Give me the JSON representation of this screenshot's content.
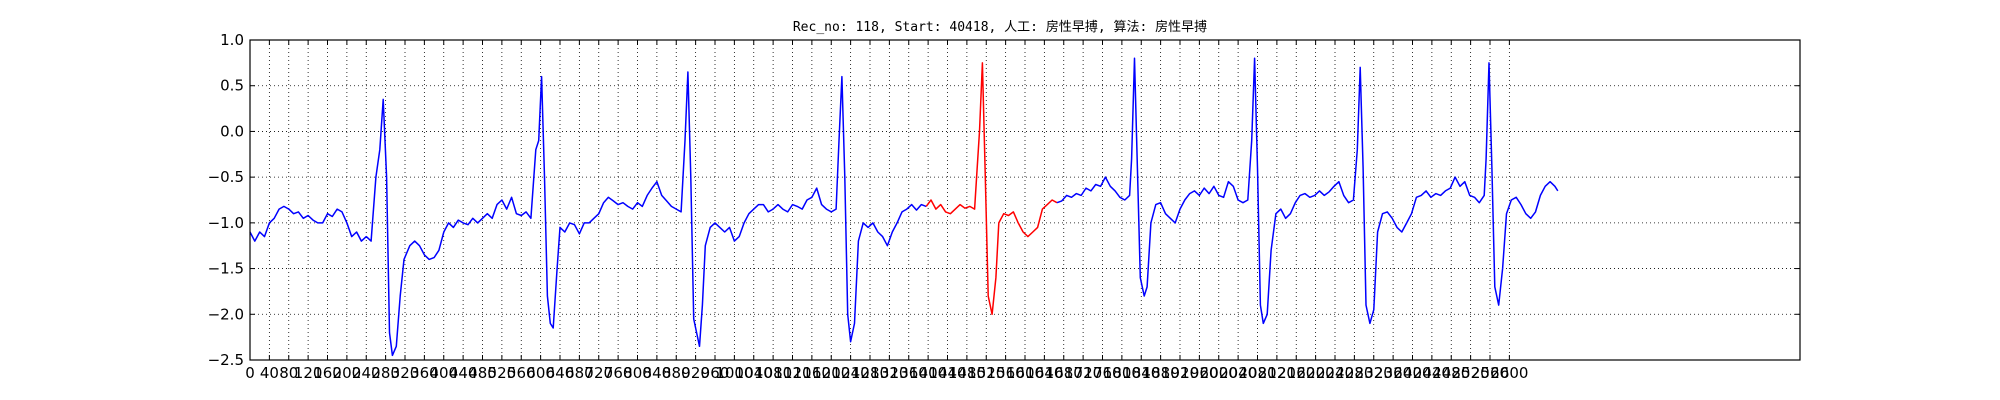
{
  "chart_data": {
    "type": "line",
    "title": "Rec_no: 118, Start: 40418, 人工: 房性早搏, 算法: 房性早搏",
    "xlabel": "",
    "ylabel": "",
    "xlim": [
      0,
      3200
    ],
    "ylim": [
      -2.5,
      1.0
    ],
    "grid": true,
    "grid_style": "dotted",
    "xticks": [
      0,
      40,
      80,
      120,
      160,
      200,
      240,
      280,
      320,
      360,
      400,
      440,
      480,
      520,
      560,
      600,
      640,
      680,
      720,
      760,
      800,
      840,
      880,
      920,
      960,
      1000,
      1040,
      1080,
      1120,
      1160,
      1200,
      1240,
      1280,
      1320,
      1360,
      1400,
      1440,
      1480,
      1520,
      1560,
      1600,
      1640,
      1680,
      1720,
      1760,
      1800,
      1840,
      1880,
      1920,
      1960,
      2000,
      2040,
      2080,
      2120,
      2160,
      2200,
      2240,
      2280,
      2320,
      2360,
      2400,
      2440,
      2480,
      2520,
      2560,
      2600
    ],
    "yticks": [
      1.0,
      0.5,
      0.0,
      -0.5,
      -1.0,
      -1.5,
      -2.0,
      -2.5
    ],
    "ytick_labels": [
      "1.0",
      "0.5",
      "0.0",
      "−0.5",
      "−1.0",
      "−1.5",
      "−2.0",
      "−2.5"
    ],
    "series": [
      {
        "color": "#0000ff",
        "segment": "pre",
        "points": [
          [
            0,
            -1.1
          ],
          [
            10,
            -1.2
          ],
          [
            20,
            -1.1
          ],
          [
            30,
            -1.15
          ],
          [
            40,
            -1.0
          ],
          [
            50,
            -0.95
          ],
          [
            60,
            -0.85
          ],
          [
            70,
            -0.82
          ],
          [
            80,
            -0.85
          ],
          [
            90,
            -0.9
          ],
          [
            100,
            -0.88
          ],
          [
            110,
            -0.95
          ],
          [
            120,
            -0.92
          ],
          [
            130,
            -0.97
          ],
          [
            140,
            -1.0
          ],
          [
            150,
            -1.0
          ],
          [
            160,
            -0.9
          ],
          [
            170,
            -0.93
          ],
          [
            180,
            -0.85
          ],
          [
            190,
            -0.88
          ],
          [
            200,
            -1.0
          ],
          [
            210,
            -1.15
          ],
          [
            220,
            -1.1
          ],
          [
            230,
            -1.2
          ],
          [
            240,
            -1.15
          ],
          [
            250,
            -1.2
          ],
          [
            260,
            -0.5
          ],
          [
            268,
            -0.2
          ],
          [
            275,
            0.35
          ],
          [
            282,
            -0.5
          ],
          [
            288,
            -2.2
          ],
          [
            294,
            -2.45
          ],
          [
            302,
            -2.35
          ],
          [
            310,
            -1.8
          ],
          [
            318,
            -1.4
          ],
          [
            330,
            -1.25
          ],
          [
            340,
            -1.2
          ],
          [
            350,
            -1.25
          ],
          [
            360,
            -1.35
          ],
          [
            370,
            -1.4
          ],
          [
            380,
            -1.38
          ],
          [
            390,
            -1.3
          ],
          [
            400,
            -1.1
          ],
          [
            410,
            -1.0
          ],
          [
            420,
            -1.05
          ],
          [
            430,
            -0.97
          ],
          [
            440,
            -1.0
          ],
          [
            450,
            -1.02
          ],
          [
            460,
            -0.95
          ],
          [
            470,
            -1.0
          ],
          [
            480,
            -0.95
          ],
          [
            490,
            -0.9
          ],
          [
            500,
            -0.95
          ],
          [
            510,
            -0.8
          ],
          [
            520,
            -0.75
          ],
          [
            530,
            -0.85
          ],
          [
            540,
            -0.72
          ],
          [
            550,
            -0.9
          ],
          [
            560,
            -0.92
          ],
          [
            570,
            -0.88
          ],
          [
            580,
            -0.95
          ],
          [
            590,
            -0.2
          ],
          [
            596,
            -0.1
          ],
          [
            602,
            0.6
          ],
          [
            608,
            -0.5
          ],
          [
            614,
            -1.8
          ],
          [
            620,
            -2.1
          ],
          [
            626,
            -2.15
          ],
          [
            634,
            -1.5
          ],
          [
            640,
            -1.05
          ],
          [
            650,
            -1.1
          ],
          [
            660,
            -1.0
          ],
          [
            670,
            -1.02
          ],
          [
            680,
            -1.12
          ],
          [
            690,
            -1.0
          ],
          [
            700,
            -1.0
          ],
          [
            710,
            -0.95
          ],
          [
            720,
            -0.9
          ],
          [
            730,
            -0.78
          ],
          [
            740,
            -0.72
          ],
          [
            750,
            -0.76
          ],
          [
            760,
            -0.8
          ],
          [
            770,
            -0.78
          ],
          [
            780,
            -0.82
          ],
          [
            790,
            -0.85
          ],
          [
            800,
            -0.78
          ],
          [
            810,
            -0.82
          ],
          [
            820,
            -0.7
          ],
          [
            830,
            -0.62
          ],
          [
            840,
            -0.55
          ],
          [
            850,
            -0.7
          ],
          [
            860,
            -0.76
          ],
          [
            870,
            -0.82
          ],
          [
            880,
            -0.85
          ],
          [
            890,
            -0.88
          ],
          [
            898,
            -0.1
          ],
          [
            904,
            0.65
          ],
          [
            910,
            -0.5
          ],
          [
            916,
            -2.05
          ],
          [
            922,
            -2.2
          ],
          [
            928,
            -2.35
          ],
          [
            934,
            -1.9
          ],
          [
            940,
            -1.25
          ],
          [
            950,
            -1.05
          ],
          [
            960,
            -1.0
          ],
          [
            970,
            -1.05
          ],
          [
            980,
            -1.1
          ],
          [
            990,
            -1.05
          ],
          [
            1000,
            -1.2
          ],
          [
            1010,
            -1.15
          ],
          [
            1020,
            -1.0
          ],
          [
            1030,
            -0.9
          ],
          [
            1040,
            -0.85
          ],
          [
            1050,
            -0.8
          ],
          [
            1060,
            -0.8
          ],
          [
            1070,
            -0.88
          ],
          [
            1080,
            -0.85
          ],
          [
            1090,
            -0.8
          ],
          [
            1100,
            -0.85
          ],
          [
            1110,
            -0.88
          ],
          [
            1120,
            -0.8
          ],
          [
            1130,
            -0.82
          ],
          [
            1140,
            -0.85
          ],
          [
            1150,
            -0.75
          ],
          [
            1160,
            -0.72
          ],
          [
            1170,
            -0.62
          ],
          [
            1180,
            -0.8
          ],
          [
            1190,
            -0.85
          ],
          [
            1200,
            -0.88
          ],
          [
            1210,
            -0.85
          ],
          [
            1216,
            -0.1
          ],
          [
            1222,
            0.6
          ],
          [
            1228,
            -0.5
          ],
          [
            1234,
            -2.0
          ],
          [
            1240,
            -2.3
          ],
          [
            1248,
            -2.1
          ],
          [
            1256,
            -1.2
          ],
          [
            1266,
            -1.0
          ],
          [
            1276,
            -1.05
          ],
          [
            1286,
            -1.0
          ],
          [
            1296,
            -1.1
          ],
          [
            1306,
            -1.15
          ],
          [
            1316,
            -1.25
          ],
          [
            1326,
            -1.1
          ],
          [
            1336,
            -1.0
          ],
          [
            1346,
            -0.88
          ],
          [
            1356,
            -0.85
          ],
          [
            1366,
            -0.8
          ],
          [
            1376,
            -0.86
          ],
          [
            1386,
            -0.8
          ],
          [
            1396,
            -0.82
          ]
        ]
      },
      {
        "color": "#ff0000",
        "segment": "beat",
        "points": [
          [
            1396,
            -0.82
          ],
          [
            1406,
            -0.75
          ],
          [
            1416,
            -0.85
          ],
          [
            1426,
            -0.8
          ],
          [
            1436,
            -0.88
          ],
          [
            1446,
            -0.9
          ],
          [
            1456,
            -0.85
          ],
          [
            1466,
            -0.8
          ],
          [
            1476,
            -0.84
          ],
          [
            1486,
            -0.82
          ],
          [
            1496,
            -0.85
          ],
          [
            1500,
            -0.5
          ],
          [
            1506,
            0.0
          ],
          [
            1512,
            0.75
          ],
          [
            1518,
            -0.5
          ],
          [
            1524,
            -1.8
          ],
          [
            1532,
            -2.0
          ],
          [
            1540,
            -1.6
          ],
          [
            1546,
            -1.0
          ],
          [
            1556,
            -0.9
          ],
          [
            1566,
            -0.92
          ],
          [
            1576,
            -0.88
          ],
          [
            1586,
            -1.0
          ],
          [
            1596,
            -1.1
          ],
          [
            1606,
            -1.15
          ],
          [
            1616,
            -1.1
          ],
          [
            1626,
            -1.05
          ],
          [
            1636,
            -0.85
          ],
          [
            1646,
            -0.8
          ],
          [
            1656,
            -0.75
          ],
          [
            1666,
            -0.78
          ]
        ]
      },
      {
        "color": "#0000ff",
        "segment": "post",
        "points": [
          [
            1666,
            -0.78
          ],
          [
            1676,
            -0.76
          ],
          [
            1686,
            -0.7
          ],
          [
            1696,
            -0.72
          ],
          [
            1706,
            -0.68
          ],
          [
            1716,
            -0.7
          ],
          [
            1726,
            -0.62
          ],
          [
            1736,
            -0.65
          ],
          [
            1746,
            -0.58
          ],
          [
            1756,
            -0.6
          ],
          [
            1766,
            -0.5
          ],
          [
            1776,
            -0.6
          ],
          [
            1786,
            -0.65
          ],
          [
            1796,
            -0.72
          ],
          [
            1806,
            -0.75
          ],
          [
            1816,
            -0.7
          ],
          [
            1820,
            -0.3
          ],
          [
            1826,
            0.8
          ],
          [
            1832,
            -0.4
          ],
          [
            1838,
            -1.6
          ],
          [
            1846,
            -1.8
          ],
          [
            1852,
            -1.7
          ],
          [
            1860,
            -1.0
          ],
          [
            1870,
            -0.8
          ],
          [
            1880,
            -0.78
          ],
          [
            1890,
            -0.9
          ],
          [
            1900,
            -0.95
          ],
          [
            1910,
            -1.0
          ],
          [
            1920,
            -0.85
          ],
          [
            1930,
            -0.75
          ],
          [
            1940,
            -0.68
          ],
          [
            1950,
            -0.65
          ],
          [
            1960,
            -0.7
          ],
          [
            1970,
            -0.62
          ],
          [
            1980,
            -0.68
          ],
          [
            1990,
            -0.6
          ],
          [
            2000,
            -0.7
          ],
          [
            2010,
            -0.72
          ],
          [
            2020,
            -0.55
          ],
          [
            2030,
            -0.6
          ],
          [
            2040,
            -0.75
          ],
          [
            2050,
            -0.78
          ],
          [
            2060,
            -0.75
          ],
          [
            2068,
            -0.1
          ],
          [
            2074,
            0.8
          ],
          [
            2080,
            -0.4
          ],
          [
            2086,
            -1.9
          ],
          [
            2092,
            -2.1
          ],
          [
            2100,
            -2.0
          ],
          [
            2108,
            -1.3
          ],
          [
            2118,
            -0.9
          ],
          [
            2128,
            -0.85
          ],
          [
            2138,
            -0.95
          ],
          [
            2148,
            -0.9
          ],
          [
            2158,
            -0.78
          ],
          [
            2168,
            -0.7
          ],
          [
            2178,
            -0.68
          ],
          [
            2188,
            -0.72
          ],
          [
            2198,
            -0.7
          ],
          [
            2208,
            -0.65
          ],
          [
            2218,
            -0.7
          ],
          [
            2228,
            -0.66
          ],
          [
            2238,
            -0.6
          ],
          [
            2248,
            -0.55
          ],
          [
            2258,
            -0.7
          ],
          [
            2268,
            -0.78
          ],
          [
            2278,
            -0.75
          ],
          [
            2286,
            -0.2
          ],
          [
            2292,
            0.7
          ],
          [
            2298,
            -0.4
          ],
          [
            2304,
            -1.9
          ],
          [
            2312,
            -2.1
          ],
          [
            2320,
            -1.95
          ],
          [
            2328,
            -1.1
          ],
          [
            2338,
            -0.9
          ],
          [
            2348,
            -0.88
          ],
          [
            2358,
            -0.95
          ],
          [
            2368,
            -1.05
          ],
          [
            2378,
            -1.1
          ],
          [
            2388,
            -1.0
          ],
          [
            2398,
            -0.9
          ],
          [
            2408,
            -0.72
          ],
          [
            2418,
            -0.7
          ],
          [
            2428,
            -0.65
          ],
          [
            2438,
            -0.72
          ],
          [
            2448,
            -0.68
          ],
          [
            2458,
            -0.7
          ],
          [
            2468,
            -0.65
          ],
          [
            2478,
            -0.62
          ],
          [
            2488,
            -0.5
          ],
          [
            2498,
            -0.6
          ],
          [
            2508,
            -0.55
          ],
          [
            2518,
            -0.7
          ],
          [
            2528,
            -0.72
          ],
          [
            2538,
            -0.78
          ],
          [
            2548,
            -0.7
          ],
          [
            2552,
            -0.3
          ],
          [
            2558,
            0.75
          ],
          [
            2564,
            -0.4
          ],
          [
            2570,
            -1.7
          ],
          [
            2578,
            -1.9
          ],
          [
            2586,
            -1.5
          ],
          [
            2594,
            -0.9
          ],
          [
            2604,
            -0.75
          ],
          [
            2614,
            -0.72
          ],
          [
            2624,
            -0.8
          ],
          [
            2634,
            -0.9
          ],
          [
            2644,
            -0.95
          ],
          [
            2654,
            -0.88
          ],
          [
            2664,
            -0.7
          ],
          [
            2674,
            -0.6
          ],
          [
            2684,
            -0.55
          ],
          [
            2694,
            -0.6
          ],
          [
            2700,
            -0.65
          ]
        ]
      }
    ]
  }
}
